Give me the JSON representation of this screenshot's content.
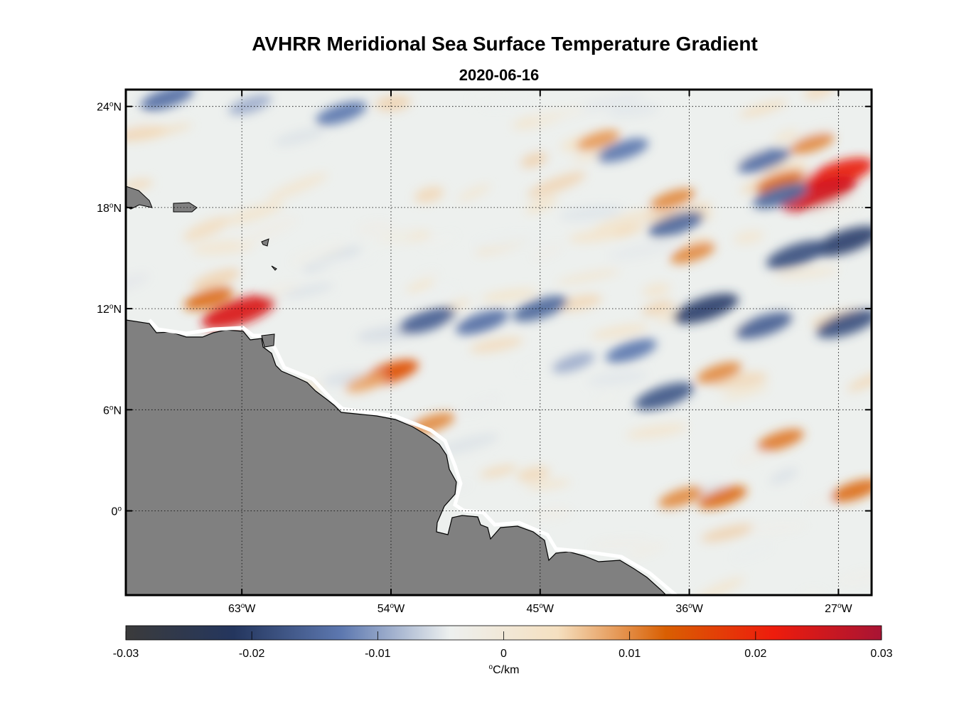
{
  "title": "AVHRR Meridional Sea Surface Temperature Gradient",
  "subtitle": "2020-06-16",
  "map": {
    "projection": "equirectangular",
    "lon_range": [
      -70,
      -25
    ],
    "lat_range": [
      -5,
      25
    ],
    "grid": true,
    "land_color": "#808080",
    "lat_labels": [
      {
        "lat": 24,
        "text": "24",
        "hemi": "N"
      },
      {
        "lat": 18,
        "text": "18",
        "hemi": "N"
      },
      {
        "lat": 12,
        "text": "12",
        "hemi": "N"
      },
      {
        "lat": 6,
        "text": "6",
        "hemi": "N"
      },
      {
        "lat": 0,
        "text": "0",
        "hemi": ""
      }
    ],
    "lon_labels": [
      {
        "lon": -63,
        "text": "63",
        "hemi": "W"
      },
      {
        "lon": -54,
        "text": "54",
        "hemi": "W"
      },
      {
        "lon": -45,
        "text": "45",
        "hemi": "W"
      },
      {
        "lon": -36,
        "text": "36",
        "hemi": "W"
      },
      {
        "lon": -27,
        "text": "27",
        "hemi": "W"
      }
    ]
  },
  "colorbar": {
    "min": -0.03,
    "max": 0.03,
    "ticks": [
      "-0.03",
      "-0.02",
      "-0.01",
      "0",
      "0.01",
      "0.02",
      "0.03"
    ],
    "label_deg": "o",
    "label_unit": "C/km",
    "colors": [
      "#3b3b3b",
      "#24365e",
      "#5d78b0",
      "#edf0ef",
      "#f5e0c0",
      "#d95f02",
      "#ee1c0c",
      "#a81434"
    ]
  },
  "features": [
    {
      "type": "positive",
      "lon": -63.2,
      "lat": 11.8,
      "value": 0.024
    },
    {
      "type": "positive",
      "lon": -65,
      "lat": 12.6,
      "value": 0.012
    },
    {
      "type": "positive",
      "lon": -54,
      "lat": 8.2,
      "value": 0.015
    },
    {
      "type": "positive",
      "lon": -55.5,
      "lat": 7.6,
      "value": 0.008
    },
    {
      "type": "positive",
      "lon": -51.5,
      "lat": 5.2,
      "value": 0.01
    },
    {
      "type": "positive",
      "lon": -27,
      "lat": 20,
      "value": 0.022
    },
    {
      "type": "positive",
      "lon": -28.2,
      "lat": 18.8,
      "value": 0.025
    },
    {
      "type": "positive",
      "lon": -30.5,
      "lat": 19.5,
      "value": 0.012
    },
    {
      "type": "positive",
      "lon": -28.6,
      "lat": 21.8,
      "value": 0.01
    },
    {
      "type": "positive",
      "lon": -34,
      "lat": 0.8,
      "value": 0.012
    },
    {
      "type": "positive",
      "lon": -36.5,
      "lat": 0.8,
      "value": 0.01
    },
    {
      "type": "positive",
      "lon": -30.5,
      "lat": 4.2,
      "value": 0.011
    },
    {
      "type": "positive",
      "lon": -26,
      "lat": 1.2,
      "value": 0.012
    },
    {
      "type": "positive",
      "lon": -34.2,
      "lat": 8.2,
      "value": 0.01
    },
    {
      "type": "positive",
      "lon": -41.5,
      "lat": 22,
      "value": 0.009
    },
    {
      "type": "positive",
      "lon": -37,
      "lat": 18.5,
      "value": 0.01
    },
    {
      "type": "positive",
      "lon": -35.8,
      "lat": 15.3,
      "value": 0.01
    },
    {
      "type": "negative",
      "lon": -26.5,
      "lat": 16,
      "value": -0.02
    },
    {
      "type": "negative",
      "lon": -29.5,
      "lat": 15.2,
      "value": -0.018
    },
    {
      "type": "negative",
      "lon": -35,
      "lat": 12,
      "value": -0.02
    },
    {
      "type": "negative",
      "lon": -31.5,
      "lat": 11,
      "value": -0.016
    },
    {
      "type": "negative",
      "lon": -26.5,
      "lat": 11.1,
      "value": -0.018
    },
    {
      "type": "negative",
      "lon": -40,
      "lat": 21.4,
      "value": -0.013
    },
    {
      "type": "negative",
      "lon": -36.8,
      "lat": 17,
      "value": -0.015
    },
    {
      "type": "negative",
      "lon": -30.5,
      "lat": 18.7,
      "value": -0.015
    },
    {
      "type": "negative",
      "lon": -31.5,
      "lat": 20.8,
      "value": -0.014
    },
    {
      "type": "negative",
      "lon": -51.8,
      "lat": 11.3,
      "value": -0.016
    },
    {
      "type": "negative",
      "lon": -48.5,
      "lat": 11.2,
      "value": -0.014
    },
    {
      "type": "negative",
      "lon": -45,
      "lat": 12,
      "value": -0.015
    },
    {
      "type": "negative",
      "lon": -37.5,
      "lat": 6.8,
      "value": -0.017
    },
    {
      "type": "negative",
      "lon": -39.5,
      "lat": 9.5,
      "value": -0.013
    },
    {
      "type": "negative",
      "lon": -67.5,
      "lat": 24.5,
      "value": -0.014
    },
    {
      "type": "negative",
      "lon": -57,
      "lat": 23.6,
      "value": -0.013
    },
    {
      "type": "negative",
      "lon": -62.5,
      "lat": 24.1,
      "value": -0.009
    },
    {
      "type": "negative",
      "lon": -43,
      "lat": 8.8,
      "value": -0.009
    }
  ]
}
